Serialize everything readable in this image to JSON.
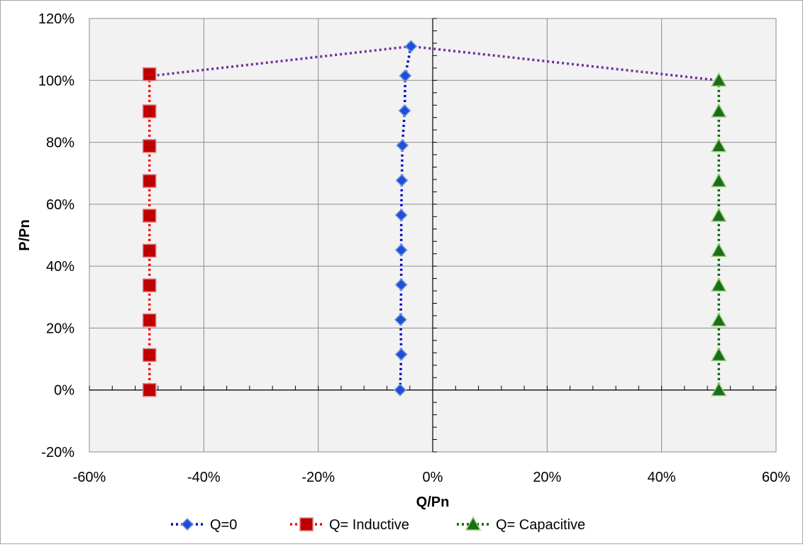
{
  "chart_data": {
    "type": "scatter",
    "xlabel": "Q/Pn",
    "ylabel": "P/Pn",
    "xlim": [
      -0.6,
      0.6
    ],
    "ylim": [
      -0.2,
      1.2
    ],
    "x_ticks": [
      -0.6,
      -0.4,
      -0.2,
      0,
      0.2,
      0.4,
      0.6
    ],
    "x_tick_labels": [
      "-60%",
      "-40%",
      "-20%",
      "0%",
      "20%",
      "40%",
      "60%"
    ],
    "y_ticks": [
      -0.2,
      0,
      0.2,
      0.4,
      0.6,
      0.8,
      1.0,
      1.2
    ],
    "y_tick_labels": [
      "-20%",
      "0%",
      "20%",
      "40%",
      "60%",
      "80%",
      "100%",
      "120%"
    ],
    "grid": true,
    "legend_position": "bottom",
    "series": [
      {
        "name": "Q=0",
        "marker": "diamond",
        "color": "#0000cc",
        "marker_fill": "#1f4fd6",
        "points": [
          [
            -0.057,
            0.0
          ],
          [
            -0.055,
            0.115
          ],
          [
            -0.056,
            0.227
          ],
          [
            -0.055,
            0.34
          ],
          [
            -0.055,
            0.452
          ],
          [
            -0.055,
            0.565
          ],
          [
            -0.054,
            0.677
          ],
          [
            -0.053,
            0.79
          ],
          [
            -0.049,
            0.902
          ],
          [
            -0.048,
            1.015
          ],
          [
            -0.038,
            1.11
          ]
        ]
      },
      {
        "name": "Q= Inductive",
        "marker": "square",
        "color": "#ff0000",
        "marker_fill": "#c00000",
        "points": [
          [
            -0.495,
            0.0
          ],
          [
            -0.495,
            0.113
          ],
          [
            -0.495,
            0.225
          ],
          [
            -0.495,
            0.338
          ],
          [
            -0.495,
            0.45
          ],
          [
            -0.495,
            0.563
          ],
          [
            -0.495,
            0.675
          ],
          [
            -0.495,
            0.788
          ],
          [
            -0.495,
            0.9
          ],
          [
            -0.495,
            1.02
          ]
        ]
      },
      {
        "name": "Q= Capacitive",
        "marker": "triangle",
        "color": "#006400",
        "marker_fill": "#1a6e1a",
        "points": [
          [
            0.5,
            0.0
          ],
          [
            0.5,
            0.113
          ],
          [
            0.5,
            0.225
          ],
          [
            0.5,
            0.338
          ],
          [
            0.5,
            0.45
          ],
          [
            0.5,
            0.563
          ],
          [
            0.5,
            0.675
          ],
          [
            0.5,
            0.788
          ],
          [
            0.5,
            0.9
          ],
          [
            0.5,
            1.0
          ]
        ]
      },
      {
        "marker": "none",
        "color": "#7030a0",
        "points": [
          [
            -0.49,
            1.015
          ],
          [
            -0.038,
            1.11
          ],
          [
            0.5,
            1.0
          ]
        ]
      }
    ]
  }
}
